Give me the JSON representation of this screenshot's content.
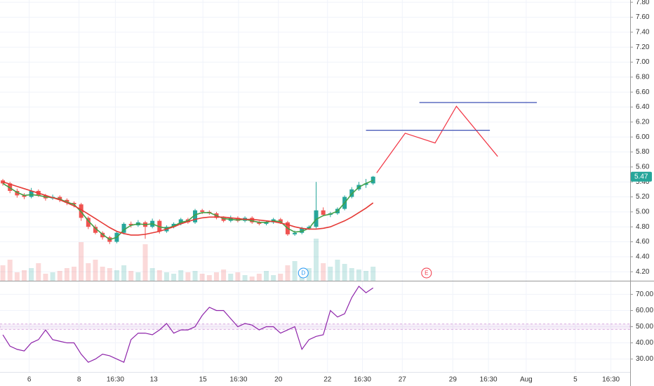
{
  "chart_data": [
    {
      "type": "candlestick",
      "xlim": [
        -0.4,
        88.1
      ],
      "ylim": [
        4.08,
        7.83
      ],
      "yticks": [
        {
          "value": 4.2,
          "label": "4.20"
        },
        {
          "value": 4.4,
          "label": "4.40"
        },
        {
          "value": 4.6,
          "label": "4.60"
        },
        {
          "value": 4.8,
          "label": "4.80"
        },
        {
          "value": 5.0,
          "label": "5.00"
        },
        {
          "value": 5.2,
          "label": "5.20"
        },
        {
          "value": 5.4,
          "label": "5.40"
        },
        {
          "value": 5.6,
          "label": "5.60"
        },
        {
          "value": 5.8,
          "label": "5.80"
        },
        {
          "value": 6.0,
          "label": "6.00"
        },
        {
          "value": 6.2,
          "label": "6.20"
        },
        {
          "value": 6.4,
          "label": "6.40"
        },
        {
          "value": 6.6,
          "label": "6.60"
        },
        {
          "value": 6.8,
          "label": "6.80"
        },
        {
          "value": 7.0,
          "label": "7.00"
        },
        {
          "value": 7.2,
          "label": "7.20"
        },
        {
          "value": 7.4,
          "label": "7.40"
        },
        {
          "value": 7.6,
          "label": "7.60"
        },
        {
          "value": 7.8,
          "label": "7.80"
        }
      ],
      "grid": true,
      "up_color": "#26a69a",
      "down_color": "#ef5350",
      "open": [
        5.42,
        5.38,
        5.28,
        5.22,
        5.2,
        5.28,
        5.22,
        5.18,
        5.2,
        5.16,
        5.12,
        5.1,
        4.92,
        4.8,
        4.72,
        4.66,
        4.6,
        4.72,
        4.84,
        4.82,
        4.86,
        4.8,
        4.88,
        4.74,
        4.8,
        4.84,
        4.9,
        4.86,
        5.02,
        5.0,
        4.98,
        4.92,
        4.88,
        4.92,
        4.88,
        4.92,
        4.86,
        4.84,
        4.86,
        4.9,
        4.86,
        4.7,
        4.72,
        4.78,
        4.8,
        5.02,
        4.96,
        4.98,
        5.04,
        5.2,
        5.3,
        5.36,
        5.38
      ],
      "high": [
        5.44,
        5.4,
        5.31,
        5.25,
        5.32,
        5.3,
        5.24,
        5.23,
        5.22,
        5.18,
        5.14,
        5.12,
        4.94,
        4.83,
        4.74,
        4.68,
        4.74,
        4.86,
        4.87,
        4.89,
        4.88,
        4.91,
        4.9,
        4.82,
        4.86,
        4.92,
        4.92,
        5.04,
        5.04,
        5.02,
        5.0,
        4.94,
        4.95,
        4.94,
        4.94,
        4.94,
        4.88,
        4.88,
        4.92,
        4.92,
        4.88,
        4.75,
        4.8,
        4.82,
        5.4,
        5.06,
        5.0,
        5.06,
        5.22,
        5.33,
        5.4,
        5.44,
        5.48
      ],
      "low": [
        5.35,
        5.25,
        5.19,
        5.17,
        5.18,
        5.2,
        5.15,
        5.16,
        5.13,
        5.09,
        5.06,
        4.88,
        4.77,
        4.7,
        4.63,
        4.57,
        4.58,
        4.7,
        4.79,
        4.8,
        4.64,
        4.78,
        4.71,
        4.72,
        4.78,
        4.82,
        4.84,
        4.84,
        4.97,
        4.96,
        4.9,
        4.86,
        4.86,
        4.86,
        4.86,
        4.84,
        4.82,
        4.82,
        4.84,
        4.84,
        4.68,
        4.68,
        4.7,
        4.76,
        4.78,
        4.94,
        4.93,
        4.96,
        5.02,
        5.18,
        5.28,
        5.32,
        5.36
      ],
      "close": [
        5.38,
        5.28,
        5.22,
        5.2,
        5.28,
        5.22,
        5.18,
        5.2,
        5.16,
        5.12,
        5.1,
        4.92,
        4.8,
        4.72,
        4.66,
        4.6,
        4.72,
        4.84,
        4.82,
        4.86,
        4.8,
        4.88,
        4.74,
        4.8,
        4.84,
        4.9,
        4.86,
        5.02,
        5.0,
        4.98,
        4.92,
        4.88,
        4.92,
        4.88,
        4.92,
        4.86,
        4.84,
        4.86,
        4.9,
        4.86,
        4.7,
        4.72,
        4.78,
        4.8,
        5.02,
        4.96,
        4.98,
        5.04,
        5.2,
        5.3,
        5.36,
        5.38,
        5.47
      ],
      "volume": [
        22,
        30,
        12,
        15,
        18,
        25,
        10,
        12,
        14,
        18,
        20,
        55,
        25,
        30,
        20,
        18,
        15,
        22,
        14,
        12,
        52,
        18,
        15,
        12,
        10,
        15,
        12,
        14,
        10,
        8,
        12,
        16,
        10,
        12,
        8,
        6,
        10,
        14,
        8,
        10,
        22,
        28,
        15,
        18,
        60,
        25,
        20,
        30,
        24,
        18,
        16,
        14,
        20
      ],
      "lines": [
        {
          "color": "#43a047",
          "values": [
            5.38,
            5.32,
            5.26,
            5.22,
            5.23,
            5.22,
            5.2,
            5.19,
            5.17,
            5.13,
            5.1,
            5.0,
            4.88,
            4.78,
            4.7,
            4.63,
            4.66,
            4.76,
            4.82,
            4.84,
            4.83,
            4.84,
            4.8,
            4.78,
            4.81,
            4.86,
            4.88,
            4.96,
            4.99,
            4.99,
            4.95,
            4.91,
            4.9,
            4.89,
            4.9,
            4.88,
            4.86,
            4.86,
            4.88,
            4.87,
            4.78,
            4.73,
            4.74,
            4.78,
            4.9,
            4.95,
            4.97,
            5.01,
            5.12,
            5.24,
            5.33,
            5.38,
            5.42
          ]
        },
        {
          "color": "#e53935",
          "values": [
            5.4,
            5.37,
            5.34,
            5.31,
            5.28,
            5.25,
            5.22,
            5.19,
            5.16,
            5.12,
            5.08,
            5.03,
            4.97,
            4.91,
            4.85,
            4.79,
            4.74,
            4.71,
            4.69,
            4.69,
            4.7,
            4.72,
            4.74,
            4.77,
            4.8,
            4.84,
            4.87,
            4.9,
            4.92,
            4.93,
            4.93,
            4.93,
            4.92,
            4.91,
            4.9,
            4.9,
            4.89,
            4.88,
            4.87,
            4.85,
            4.83,
            4.8,
            4.78,
            4.77,
            4.77,
            4.78,
            4.8,
            4.84,
            4.88,
            4.93,
            4.99,
            5.05,
            5.12
          ]
        }
      ],
      "drawings": [
        {
          "color": "#f23645",
          "x": [
            52.5,
            56.5,
            60.7,
            63.7,
            69.5
          ],
          "y": [
            5.52,
            6.05,
            5.92,
            6.41,
            5.74
          ]
        },
        {
          "color": "#3f51b5",
          "x": [
            51.0,
            68.4
          ],
          "y": [
            6.09,
            6.09
          ]
        },
        {
          "color": "#3f51b5",
          "x": [
            58.5,
            75.0
          ],
          "y": [
            6.46,
            6.46
          ]
        }
      ],
      "events": [
        {
          "label": "D",
          "x": 42.2,
          "color": "#2196f3"
        },
        {
          "label": "E",
          "x": 59.5,
          "color": "#f23645"
        }
      ]
    },
    {
      "type": "line",
      "xlim": [
        -0.4,
        88.1
      ],
      "ylim": [
        22,
        78
      ],
      "yticks": [
        {
          "value": 30,
          "label": "30.00"
        },
        {
          "value": 40,
          "label": "40.00"
        },
        {
          "value": 50,
          "label": "50.00"
        },
        {
          "value": 60,
          "label": "60.00"
        },
        {
          "value": 70,
          "label": "70.00"
        }
      ],
      "xticks": [
        {
          "value": 3.7,
          "label": "6"
        },
        {
          "value": 10.7,
          "label": "8"
        },
        {
          "value": 15.8,
          "label": "16:30"
        },
        {
          "value": 21.2,
          "label": "13"
        },
        {
          "value": 28.1,
          "label": "15"
        },
        {
          "value": 33.1,
          "label": "16:30"
        },
        {
          "value": 38.7,
          "label": "20"
        },
        {
          "value": 45.6,
          "label": "22"
        },
        {
          "value": 50.5,
          "label": "16:30"
        },
        {
          "value": 56.1,
          "label": "27"
        },
        {
          "value": 63.2,
          "label": "29"
        },
        {
          "value": 68.2,
          "label": "16:30"
        },
        {
          "value": 73.5,
          "label": "Aug"
        },
        {
          "value": 80.4,
          "label": "5"
        },
        {
          "value": 85.4,
          "label": "16:30"
        }
      ],
      "grid": true,
      "band": [
        48.3,
        51.7
      ],
      "band_color": "#9c27b0",
      "color": "#8e24aa",
      "values": [
        45,
        38,
        36,
        35,
        40,
        42,
        48,
        42,
        41,
        40,
        40,
        33,
        28,
        30,
        33,
        32,
        30,
        28,
        42,
        46,
        46,
        45,
        48,
        52,
        46,
        48,
        48,
        50,
        57,
        62,
        60,
        60,
        55,
        50,
        52,
        51,
        48,
        50,
        50,
        46,
        48,
        50,
        36,
        42,
        44,
        45,
        60,
        56,
        58,
        68,
        75,
        71,
        74
      ]
    }
  ]
}
